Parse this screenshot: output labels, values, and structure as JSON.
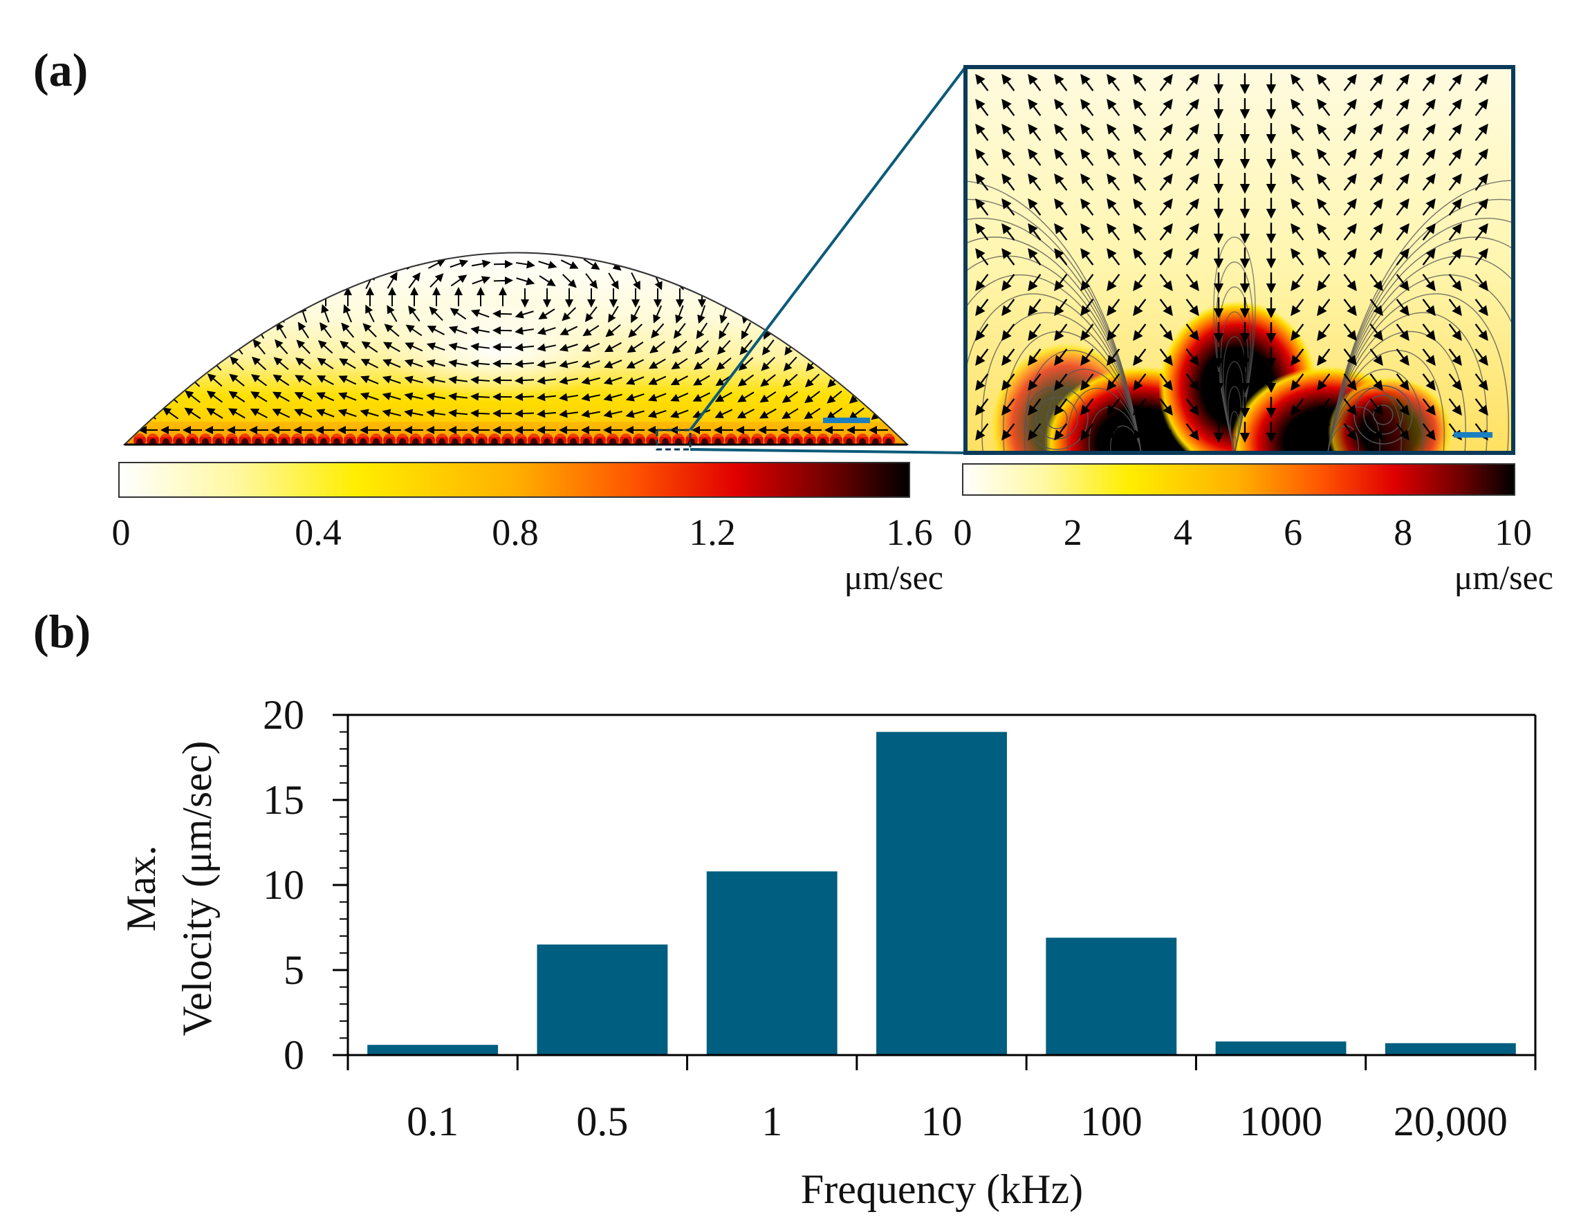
{
  "panel_a": {
    "label": "(a)",
    "colorbar_left": {
      "ticks": [
        "0",
        "0.4",
        "0.8",
        "1.2",
        "1.6"
      ],
      "unit": "μm/sec"
    },
    "colorbar_right": {
      "ticks": [
        "0",
        "2",
        "4",
        "6",
        "8",
        "10"
      ],
      "unit": "μm/sec"
    },
    "colormap": [
      "#ffffff",
      "#fff8a0",
      "#ffee00",
      "#ffb400",
      "#ff5a00",
      "#e00000",
      "#7a0000",
      "#000000"
    ],
    "accent_color": "#0b5a7a",
    "scale_bar_color": "#1a7fc0"
  },
  "panel_b": {
    "label": "(b)"
  },
  "chart_data": {
    "type": "bar",
    "title": "",
    "categories": [
      "0.1",
      "0.5",
      "1",
      "10",
      "100",
      "1000",
      "20,000"
    ],
    "values": [
      0.6,
      6.5,
      10.8,
      19.0,
      6.9,
      0.8,
      0.7
    ],
    "xlabel": "Frequency (kHz)",
    "ylabel_line1": "Max.",
    "ylabel_line2": "Velocity (μm/sec)",
    "ylim": [
      0,
      20
    ],
    "yticks": [
      "0",
      "5",
      "10",
      "15",
      "20"
    ],
    "bar_color": "#005e80"
  }
}
